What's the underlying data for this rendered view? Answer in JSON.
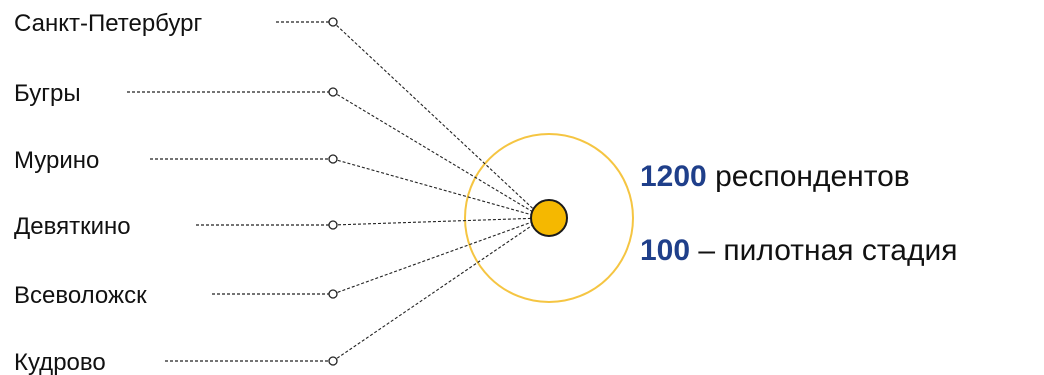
{
  "locations": [
    {
      "label": "Санкт-Петербург"
    },
    {
      "label": "Бугры"
    },
    {
      "label": "Мурино"
    },
    {
      "label": "Девяткино"
    },
    {
      "label": "Всеволожск"
    },
    {
      "label": "Кудрово"
    }
  ],
  "stats": {
    "respondents_number": "1200",
    "respondents_text": " респондентов",
    "pilot_number": "100",
    "pilot_text": " – пилотная стадия"
  },
  "colors": {
    "accent": "#f5b800",
    "accent_stroke": "#1a1a1a",
    "ring": "#f5c542",
    "number": "#1f3f8a",
    "text": "#111111",
    "dash": "#222222"
  }
}
